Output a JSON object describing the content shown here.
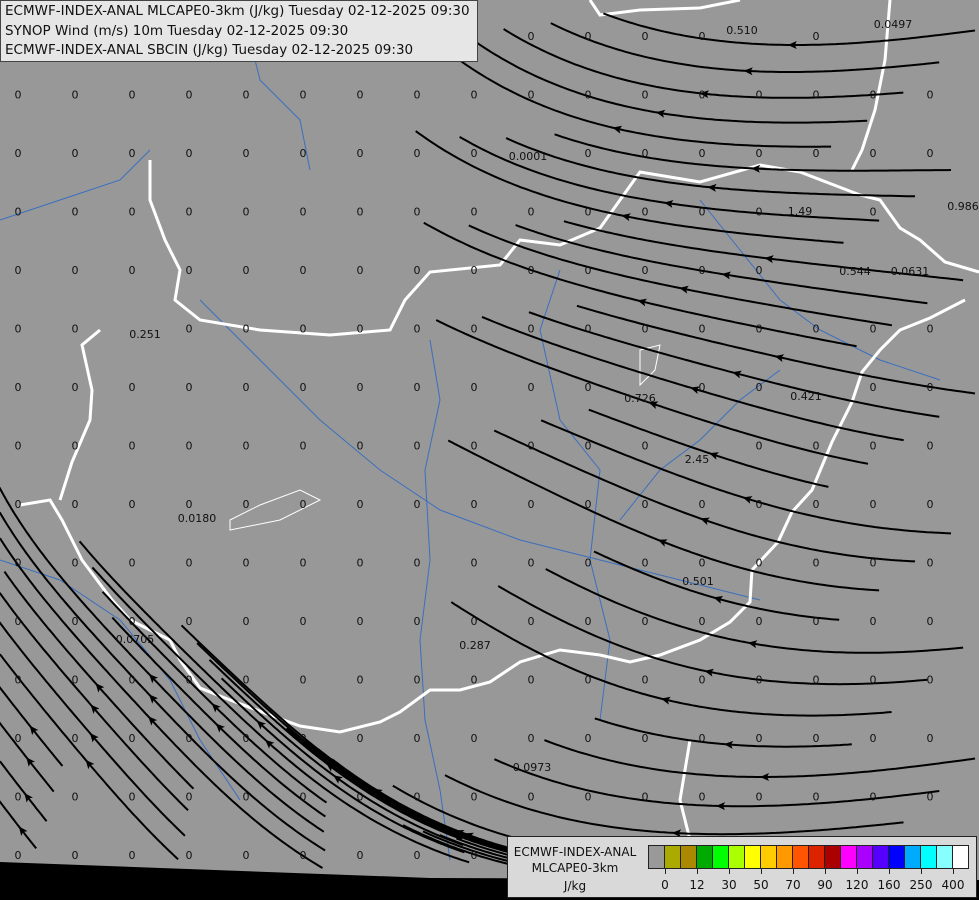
{
  "header": {
    "lines": [
      "ECMWF-INDEX-ANAL MLCAPE0-3km (J/kg) Tuesday 02-12-2025 09:30",
      "SYNOP Wind (m/s) 10m Tuesday 02-12-2025 09:30",
      "ECMWF-INDEX-ANAL SBCIN (J/kg) Tuesday 02-12-2025 09:30"
    ]
  },
  "map": {
    "background_color": "#989898",
    "border_color": "#ffffff",
    "river_color": "#3a6fc0",
    "streamline_color": "#000000",
    "default_value": "0",
    "values": [
      "0.510",
      "0.0497",
      "0.0001",
      "1.49",
      "0.986",
      "0.544",
      "0.0631",
      "0.251",
      "0.726",
      "0.421",
      "2.45",
      "0.0180",
      "0.501",
      "0.0705",
      "0.287",
      "0.0973"
    ]
  },
  "legend": {
    "title1": "ECMWF-INDEX-ANAL",
    "title2": "MLCAPE0-3km",
    "unit": "J/kg",
    "colors": [
      "#999999",
      "#aaaa00",
      "#aa8800",
      "#00aa00",
      "#00ff00",
      "#aaff00",
      "#ffff00",
      "#ffcc00",
      "#ff9900",
      "#ff5500",
      "#dd2200",
      "#aa0000",
      "#ff00ff",
      "#aa00ff",
      "#5500ff",
      "#0000ff",
      "#00aaff",
      "#00ffff",
      "#88ffff",
      "#ffffff"
    ],
    "ticks": [
      "0",
      "12",
      "30",
      "50",
      "70",
      "90",
      "120",
      "160",
      "250",
      "400"
    ]
  }
}
